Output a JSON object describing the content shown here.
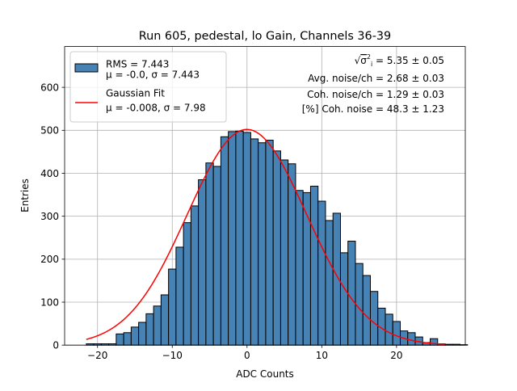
{
  "chart_data": {
    "type": "bar",
    "title": "Run 605, pedestal, lo Gain, Channels 36-39",
    "xlabel": "ADC Counts",
    "ylabel": "Entries",
    "xlim": [
      -24.4,
      29.2
    ],
    "ylim": [
      0,
      695
    ],
    "xticks": [
      -20,
      -10,
      0,
      10,
      20
    ],
    "yticks": [
      0,
      100,
      200,
      300,
      400,
      500,
      600
    ],
    "grid": true,
    "bin_width": 1.0,
    "histogram": {
      "x_start": -21.5,
      "values": [
        3,
        3,
        3,
        3,
        26,
        29,
        42,
        53,
        73,
        91,
        117,
        177,
        228,
        285,
        324,
        385,
        424,
        416,
        485,
        497,
        498,
        495,
        480,
        471,
        477,
        452,
        431,
        422,
        360,
        355,
        370,
        335,
        290,
        307,
        215,
        242,
        190,
        162,
        125,
        86,
        72,
        55,
        33,
        29,
        19,
        6,
        15,
        3,
        2,
        2,
        1,
        0
      ],
      "color": "#4682b4",
      "edge_color": "#000000"
    },
    "fit": {
      "mu": -0.008,
      "sigma": 7.98,
      "amplitude": 502,
      "x_range": [
        -21.5,
        26.5
      ],
      "color": "#ff0000"
    },
    "legend": {
      "placement": "top-left",
      "entries": [
        {
          "line1": "RMS = 7.443",
          "line2": "μ = -0.0, σ = 7.443",
          "marker": "patch"
        },
        {
          "line1": "Gaussian Fit",
          "line2": "μ = -0.008, σ = 7.98",
          "marker": "line"
        }
      ]
    },
    "annotations": {
      "sigma_total_value": " = 5.35 ± 0.05",
      "avg_noise": "Avg. noise/ch = 2.68 ± 0.03",
      "coh_noise": "Coh. noise/ch = 1.29 ± 0.03",
      "coh_percent": "[%] Coh. noise = 48.3 ± 1.23"
    }
  }
}
